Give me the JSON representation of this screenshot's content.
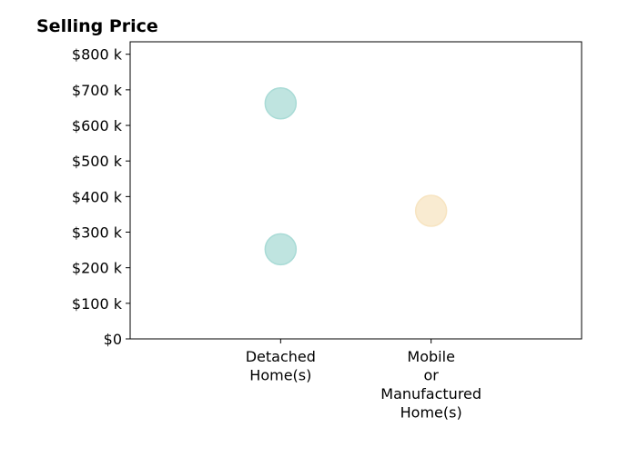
{
  "chart_data": {
    "type": "scatter",
    "title": "Selling Price",
    "xlabel": "",
    "ylabel": "",
    "categories": [
      [
        "Detached",
        "Home(s)"
      ],
      [
        "Mobile",
        "or",
        "Manufactured",
        "Home(s)"
      ]
    ],
    "x_slots": 3,
    "yticks": [
      0,
      100,
      200,
      300,
      400,
      500,
      600,
      700,
      800
    ],
    "ytick_labels": [
      "$0",
      "$100 k",
      "$200 k",
      "$300 k",
      "$400 k",
      "$500 k",
      "$600 k",
      "$700 k",
      "$800 k"
    ],
    "ylim": [
      0,
      835
    ],
    "units": "thousands of dollars",
    "grid": false,
    "legend": "none",
    "points": [
      {
        "category": 0,
        "y": 662,
        "color": "#a9dbd6"
      },
      {
        "category": 0,
        "y": 252,
        "color": "#a9dbd6"
      },
      {
        "category": 1,
        "y": 360,
        "color": "#f7e4c1"
      }
    ],
    "colors": {
      "detached": "#a9dbd6",
      "mobile": "#f7e4c1"
    }
  }
}
